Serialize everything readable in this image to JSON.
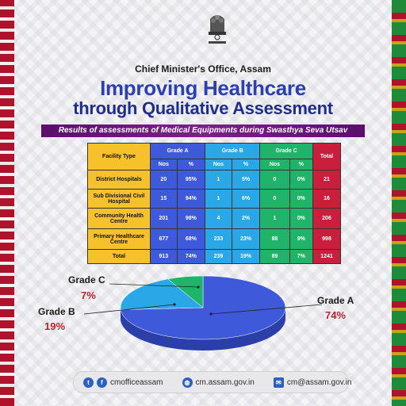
{
  "header": {
    "office": "Chief Minister's Office, Assam",
    "title_line1": "Improving Healthcare",
    "title_line2": "through Qualitative Assessment",
    "banner": "Results of assessments of Medical Equipments during Swasthya Seva Utsav"
  },
  "colors": {
    "grade_a": "#3e59d9",
    "grade_b": "#2aa7e6",
    "grade_c": "#1fb46a",
    "total": "#c91f3c",
    "facility": "#f6c12a"
  },
  "table": {
    "col_facility": "Facility Type",
    "col_grade_a": "Grade A",
    "col_grade_b": "Grade B",
    "col_grade_c": "Grade C",
    "col_total": "Total",
    "sub_nos": "Nos",
    "sub_pct": "%",
    "rows": [
      {
        "facility": "District Hospitals",
        "a_nos": "20",
        "a_pct": "95%",
        "b_nos": "1",
        "b_pct": "5%",
        "c_nos": "0",
        "c_pct": "0%",
        "total": "21"
      },
      {
        "facility": "Sub Divisional Civil Hospital",
        "a_nos": "15",
        "a_pct": "94%",
        "b_nos": "1",
        "b_pct": "6%",
        "c_nos": "0",
        "c_pct": "0%",
        "total": "16"
      },
      {
        "facility": "Community Health Centre",
        "a_nos": "201",
        "a_pct": "98%",
        "b_nos": "4",
        "b_pct": "2%",
        "c_nos": "1",
        "c_pct": "0%",
        "total": "206"
      },
      {
        "facility": "Primary Healthcare Centre",
        "a_nos": "677",
        "a_pct": "68%",
        "b_nos": "233",
        "b_pct": "23%",
        "c_nos": "88",
        "c_pct": "9%",
        "total": "998"
      },
      {
        "facility": "Total",
        "a_nos": "913",
        "a_pct": "74%",
        "b_nos": "239",
        "b_pct": "19%",
        "c_nos": "89",
        "c_pct": "7%",
        "total": "1241"
      }
    ]
  },
  "chart_data": {
    "type": "pie",
    "categories": [
      "Grade A",
      "Grade B",
      "Grade C"
    ],
    "values": [
      74,
      19,
      7
    ],
    "labels": [
      "74%",
      "19%",
      "7%"
    ]
  },
  "footer": {
    "social": "cmofficeassam",
    "website": "cm.assam.gov.in",
    "email": "cm@assam.gov.in"
  }
}
